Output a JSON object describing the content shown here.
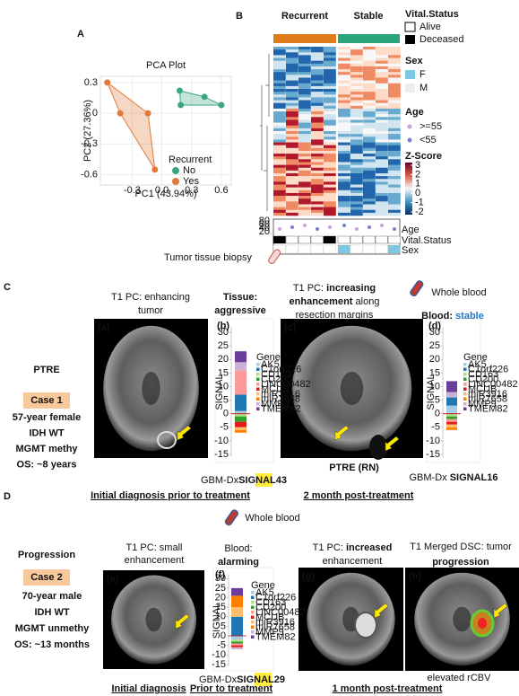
{
  "panel_labels": [
    "A",
    "B",
    "C",
    "D"
  ],
  "pca": {
    "title": "PCA Plot",
    "x_label": "PC1 (43.94%)",
    "y_label": "PC2 (27.36%)",
    "xlim": [
      -0.62,
      0.7
    ],
    "ylim": [
      -0.7,
      0.36
    ],
    "xticks": [
      -0.3,
      {
        "value": 0,
        "label": "0.0"
      },
      0.3,
      0.6
    ],
    "yticks": [
      0.3,
      0,
      -0.3,
      -0.6
    ],
    "legend_title": "Recurrent",
    "series": [
      {
        "name": "No",
        "color": "#3aa67e",
        "x": [
          0.18,
          0.43,
          0.6,
          0.19
        ],
        "y": [
          0.22,
          0.16,
          0.08,
          0.08
        ]
      },
      {
        "name": "Yes",
        "color": "#e07b39",
        "x": [
          -0.55,
          -0.14,
          -0.07,
          -0.42
        ],
        "y": [
          0.3,
          0,
          -0.55,
          0
        ]
      }
    ]
  },
  "heatmap": {
    "groups": [
      {
        "name": "Recurrent",
        "color": "#e07b1a"
      },
      {
        "name": "Stable",
        "color": "#2aa57a"
      }
    ],
    "vital_title": "Vital.Status",
    "vital": [
      "Alive",
      "Deceased"
    ],
    "sex_title": "Sex",
    "sex": [
      "F",
      "M"
    ],
    "age_title": "Age",
    "age": [
      ">=55",
      "<55"
    ],
    "z_title": "Z-Score",
    "z_ticks": [
      3,
      2,
      1,
      0,
      -1,
      -2
    ],
    "age_axis": [
      80,
      60,
      40,
      20
    ],
    "row_labels": [
      "Age",
      "Vital.Status",
      "Sex"
    ]
  },
  "panel_c": {
    "biopsy": "Tumor tissue biopsy",
    "image_a": {
      "tag": "(a)",
      "caption": [
        "T1 PC: enhancing",
        "tumor"
      ]
    },
    "tissue": {
      "label": "Tissue:",
      "status": "aggressive"
    },
    "image_c": {
      "tag": "(c)",
      "caption": [
        [
          "T1 PC: ",
          "increasing"
        ],
        [
          "enhancement",
          " along"
        ],
        [
          "resection margins"
        ]
      ],
      "sublabel": "PTRE (RN)"
    },
    "blood": "Whole blood",
    "blood_status": {
      "label": "Blood: ",
      "status": "stable"
    },
    "diagnosis": "PTRE",
    "case": {
      "id": "Case 1",
      "lines": [
        "57-year female",
        "IDH WT",
        "MGMT methy",
        "OS: ~8 years"
      ]
    },
    "signal_initial": {
      "prefix": "GBM-Dx",
      "signal": "SIGNAL",
      "value": "43"
    },
    "signal_post": {
      "prefix": "GBM-Dx ",
      "signal": "SIGNAL",
      "value": "16"
    },
    "footers": [
      "Initial diagnosis prior to treatment",
      "2 month post-treatment"
    ]
  },
  "panel_d": {
    "blood": "Whole blood",
    "image_e": {
      "tag": "(e)",
      "caption": [
        "T1 PC: small",
        "enhancement"
      ]
    },
    "blood_status": {
      "label": "Blood:",
      "status": "alarming"
    },
    "image_g": {
      "tag": "(g)",
      "caption": [
        [
          "T1 PC: ",
          "increased"
        ],
        [
          "enhancement"
        ]
      ]
    },
    "image_h": {
      "tag": "(h)",
      "caption": [
        "T1 Merged DSC: tumor",
        "progression"
      ],
      "sublabel": "elevated rCBV"
    },
    "diagnosis": "Progression",
    "case": {
      "id": "Case 2",
      "lines": [
        "70-year male",
        "IDH WT",
        "MGMT unmethy",
        "OS: ~13 months"
      ]
    },
    "signal": {
      "prefix": "GBM-Dx",
      "signal": "SIGNAL",
      "value": "29"
    },
    "footers": [
      "Initial diagnosis",
      "Prior to treatment",
      "1 month post-treatment"
    ]
  },
  "signal_charts": [
    {
      "tag": "(b)",
      "y_label": "SIGNAL",
      "ylim": [
        -16,
        32
      ],
      "yticks": [
        30,
        25,
        20,
        15,
        10,
        5,
        0,
        -5,
        -10,
        -15
      ],
      "legend_title": "Gene",
      "series": [
        {
          "name": "AK5",
          "color": "#a6cee3",
          "value": 1
        },
        {
          "name": "C1orf226",
          "color": "#1f78b4",
          "value": 6
        },
        {
          "name": "CD163",
          "color": "#b2df8a",
          "value": -1
        },
        {
          "name": "CD200",
          "color": "#33a02c",
          "value": -2
        },
        {
          "name": "LINC00482",
          "color": "#fb9a99",
          "value": 9
        },
        {
          "name": "MCUB",
          "color": "#e31a1c",
          "value": -2
        },
        {
          "name": "miR3916",
          "color": "#fdbf6f",
          "value": -1
        },
        {
          "name": "miR7658",
          "color": "#ff7f00",
          "value": -1
        },
        {
          "name": "MMP9",
          "color": "#cab2d6",
          "value": 3
        },
        {
          "name": "TMEM82",
          "color": "#6a3d9a",
          "value": 4
        }
      ]
    },
    {
      "tag": "(d)",
      "y_label": "SIGNAL",
      "ylim": [
        -16,
        32
      ],
      "yticks": [
        30,
        25,
        20,
        15,
        10,
        5,
        0,
        -5,
        -10,
        -15
      ],
      "legend_title": "Gene",
      "series": [
        {
          "name": "AK5",
          "color": "#a6cee3",
          "value": 3
        },
        {
          "name": "C1orf226",
          "color": "#1f78b4",
          "value": 3
        },
        {
          "name": "CD163",
          "color": "#b2df8a",
          "value": -1
        },
        {
          "name": "CD200",
          "color": "#33a02c",
          "value": -1
        },
        {
          "name": "LINC00482",
          "color": "#fb9a99",
          "value": -1
        },
        {
          "name": "MCUB",
          "color": "#e31a1c",
          "value": -1
        },
        {
          "name": "miR3916",
          "color": "#fdbf6f",
          "value": -1
        },
        {
          "name": "miR7658",
          "color": "#ff7f00",
          "value": -1
        },
        {
          "name": "MMP9",
          "color": "#cab2d6",
          "value": 2
        },
        {
          "name": "TMEM82",
          "color": "#6a3d9a",
          "value": 4
        }
      ]
    },
    {
      "tag": "(f)",
      "y_label": "SIGNAL",
      "ylim": [
        -16,
        32
      ],
      "yticks": [
        30,
        25,
        20,
        15,
        10,
        5,
        0,
        -5,
        -10,
        -15
      ],
      "legend_title": "Gene",
      "series": [
        {
          "name": "AK5",
          "color": "#a6cee3",
          "value": -2
        },
        {
          "name": "C1orf226",
          "color": "#1f78b4",
          "value": 10
        },
        {
          "name": "CD163",
          "color": "#b2df8a",
          "value": -1
        },
        {
          "name": "CD200",
          "color": "#33a02c",
          "value": -1
        },
        {
          "name": "LINC00482",
          "color": "#fb9a99",
          "value": -1
        },
        {
          "name": "MCUB",
          "color": "#e31a1c",
          "value": -1
        },
        {
          "name": "miR3916",
          "color": "#fdbf6f",
          "value": 5
        },
        {
          "name": "miR7658",
          "color": "#ff7f00",
          "value": 6
        },
        {
          "name": "MMP9",
          "color": "#cab2d6",
          "value": -1
        },
        {
          "name": "TMEM82",
          "color": "#6a3d9a",
          "value": 4
        }
      ]
    }
  ]
}
